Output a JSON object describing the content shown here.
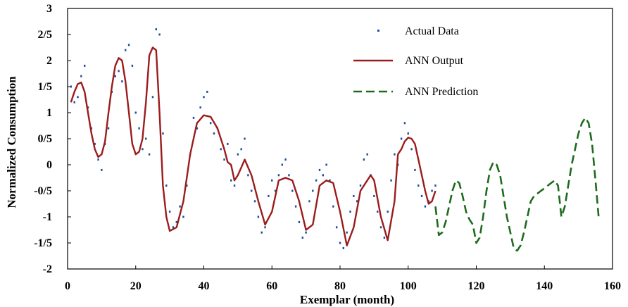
{
  "chart_data": {
    "type": "line",
    "xlabel": "Exemplar (month)",
    "ylabel": "Normalized Consumption",
    "xlim": [
      0,
      160
    ],
    "ylim": [
      -2,
      3
    ],
    "xticks": [
      0,
      20,
      40,
      60,
      80,
      100,
      120,
      140,
      160
    ],
    "yticks": [
      3,
      2.5,
      2,
      1.5,
      1,
      0.5,
      0,
      -0.5,
      -1,
      -1.5,
      -2
    ],
    "ytick_labels": [
      "3",
      "2/5",
      "2",
      "1/5",
      "1",
      "0/5",
      "0",
      "-0/5",
      "-1",
      "-1/5",
      "-2"
    ],
    "grid": false,
    "legend_placement": "top-right",
    "series": [
      {
        "name": "Actual Data",
        "style": "dots",
        "color": "#1f4e9c",
        "x": [
          1,
          2,
          3,
          4,
          5,
          6,
          7,
          8,
          9,
          10,
          11,
          12,
          13,
          14,
          15,
          16,
          17,
          18,
          19,
          20,
          21,
          22,
          23,
          24,
          25,
          26,
          27,
          28,
          29,
          30,
          31,
          32,
          33,
          34,
          35,
          36,
          37,
          38,
          39,
          40,
          41,
          42,
          43,
          44,
          45,
          46,
          47,
          48,
          49,
          50,
          51,
          52,
          53,
          54,
          55,
          56,
          57,
          58,
          59,
          60,
          61,
          62,
          63,
          64,
          65,
          66,
          67,
          68,
          69,
          70,
          71,
          72,
          73,
          74,
          75,
          76,
          77,
          78,
          79,
          80,
          81,
          82,
          83,
          84,
          85,
          86,
          87,
          88,
          89,
          90,
          91,
          92,
          93,
          94,
          95,
          96,
          97,
          98,
          99,
          100,
          101,
          102,
          103,
          104,
          105,
          106,
          107,
          108
        ],
        "y": [
          1.5,
          1.2,
          1.3,
          1.7,
          1.9,
          1.1,
          0.7,
          0.4,
          0.1,
          -0.1,
          0.4,
          0.7,
          1.4,
          1.7,
          1.8,
          1.6,
          2.2,
          2.3,
          1.9,
          1.0,
          0.7,
          0.3,
          0.5,
          0.2,
          1.3,
          2.6,
          2.5,
          0.6,
          -0.4,
          -0.9,
          -1.2,
          -1.1,
          -0.8,
          -1.0,
          -0.4,
          0.2,
          0.9,
          0.7,
          1.1,
          1.3,
          1.4,
          0.8,
          0.6,
          0.7,
          0.3,
          0.1,
          0.4,
          -0.3,
          -0.4,
          0.2,
          0.3,
          0.5,
          -0.2,
          -0.5,
          -0.7,
          -1.0,
          -1.3,
          -1.2,
          -0.6,
          -0.3,
          -0.5,
          -0.2,
          0.0,
          0.1,
          -0.2,
          -0.5,
          -0.8,
          -1.1,
          -1.4,
          -1.3,
          -0.7,
          -0.5,
          -0.3,
          -0.1,
          -0.2,
          0.0,
          -0.3,
          -0.8,
          -1.2,
          -1.5,
          -1.6,
          -1.3,
          -0.9,
          -0.6,
          -0.7,
          -0.4,
          0.1,
          0.2,
          -0.2,
          -0.6,
          -0.9,
          -1.2,
          -1.4,
          -0.9,
          -0.3,
          0.2,
          0.0,
          0.5,
          0.8,
          0.6,
          0.3,
          -0.1,
          -0.4,
          -0.6,
          -0.8,
          -0.7,
          -0.5,
          -0.4
        ]
      },
      {
        "name": "ANN Output",
        "style": "solid",
        "color": "#9b1c1c",
        "x": [
          1,
          2,
          3,
          4,
          5,
          6,
          7,
          8,
          9,
          10,
          11,
          12,
          13,
          14,
          15,
          16,
          17,
          18,
          19,
          20,
          21,
          22,
          23,
          24,
          25,
          26,
          27,
          28,
          29,
          30,
          32,
          34,
          36,
          38,
          40,
          42,
          44,
          46,
          47,
          48,
          49,
          50,
          52,
          54,
          56,
          58,
          60,
          62,
          64,
          66,
          68,
          70,
          72,
          74,
          76,
          78,
          80,
          82,
          84,
          86,
          88,
          89,
          90,
          92,
          94,
          96,
          97,
          98,
          99,
          100,
          101,
          102,
          103,
          104,
          105,
          106,
          107,
          108
        ],
        "y": [
          1.2,
          1.4,
          1.55,
          1.58,
          1.4,
          1.0,
          0.6,
          0.3,
          0.15,
          0.2,
          0.45,
          1.0,
          1.5,
          1.9,
          2.05,
          2.0,
          1.6,
          1.0,
          0.4,
          0.2,
          0.25,
          0.5,
          1.2,
          2.1,
          2.25,
          2.2,
          1.0,
          -0.4,
          -1.0,
          -1.27,
          -1.2,
          -0.7,
          0.2,
          0.8,
          0.95,
          0.92,
          0.7,
          0.3,
          0.05,
          0.0,
          -0.3,
          -0.2,
          0.1,
          -0.2,
          -0.7,
          -1.15,
          -0.9,
          -0.3,
          -0.25,
          -0.3,
          -0.7,
          -1.25,
          -1.15,
          -0.4,
          -0.3,
          -0.35,
          -0.9,
          -1.55,
          -1.2,
          -0.5,
          -0.3,
          -0.2,
          -0.3,
          -1.0,
          -1.45,
          -0.7,
          0.2,
          0.3,
          0.45,
          0.52,
          0.5,
          0.4,
          0.1,
          -0.2,
          -0.5,
          -0.75,
          -0.7,
          -0.5
        ]
      },
      {
        "name": "ANN Prediction",
        "style": "dashed",
        "color": "#1e6b1e",
        "x": [
          108,
          109,
          110,
          111,
          112,
          113,
          114,
          115,
          116,
          117,
          118,
          119,
          120,
          121,
          122,
          123,
          124,
          125,
          126,
          127,
          128,
          129,
          130,
          131,
          132,
          133,
          134,
          135,
          136,
          137,
          138,
          139,
          140,
          141,
          142,
          143,
          144,
          145,
          146,
          147,
          148,
          149,
          150,
          151,
          152,
          153,
          154,
          155,
          156
        ],
        "y": [
          -0.8,
          -1.35,
          -1.3,
          -1.1,
          -0.8,
          -0.5,
          -0.3,
          -0.35,
          -0.6,
          -0.9,
          -1.05,
          -1.15,
          -1.5,
          -1.4,
          -1.0,
          -0.5,
          -0.1,
          0.05,
          0.0,
          -0.2,
          -0.6,
          -1.0,
          -1.3,
          -1.6,
          -1.65,
          -1.55,
          -1.3,
          -1.0,
          -0.7,
          -0.6,
          -0.55,
          -0.5,
          -0.45,
          -0.4,
          -0.35,
          -0.3,
          -0.4,
          -1.0,
          -0.8,
          -0.4,
          0.0,
          0.3,
          0.6,
          0.8,
          0.9,
          0.8,
          0.4,
          -0.3,
          -1.05
        ]
      }
    ]
  }
}
